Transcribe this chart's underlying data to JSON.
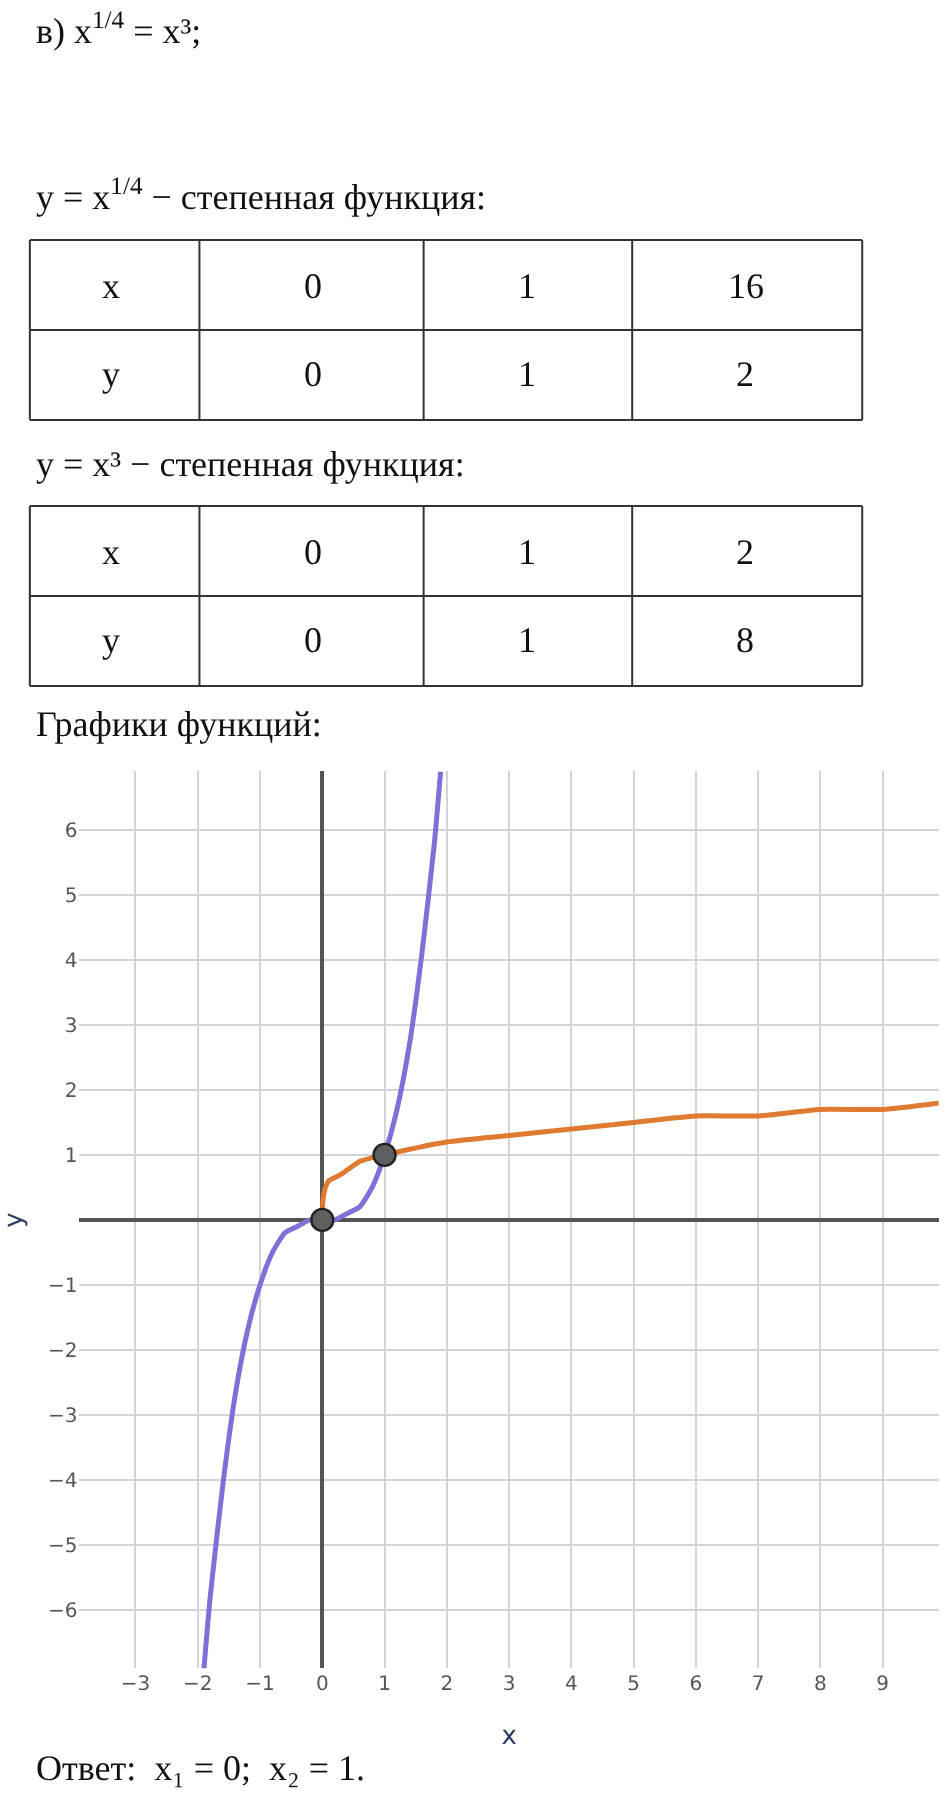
{
  "chart_data": {
    "type": "line",
    "xlabel": "x",
    "ylabel": "y",
    "annotations": [
      "в) x$^{1/4}$ = x³;",
      "y = x$^{1/4}$ − степенная функция:",
      "x",
      "0",
      "1",
      "16",
      "y",
      "0",
      "1",
      "2",
      "y = x³ − степенная функция:",
      "x",
      "0",
      "1",
      "2",
      "y",
      "0",
      "1",
      "8",
      "Графики функций:",
      "Ответ:  x₁ = 0;  x₂ = 1."
    ],
    "series": [
      {
        "color": "#7f6fd6",
        "x": [
          -1.9,
          -1.8,
          -1.6,
          -1.4,
          -1.2,
          -1,
          -0.8,
          -0.6,
          -0.4,
          -0.2,
          0,
          0.2,
          0.4,
          0.6,
          0.8,
          1,
          1.2,
          1.4,
          1.6,
          1.8,
          1.9
        ],
        "values": [
          -6.9,
          -5.8,
          -4.1,
          -2.7,
          -1.7,
          -1,
          -0.5,
          -0.2,
          -0.1,
          0,
          0,
          0,
          0.1,
          0.2,
          0.5,
          1,
          1.7,
          2.7,
          4.1,
          5.8,
          6.9
        ]
      },
      {
        "color": "#e07a30",
        "x": [
          0,
          0.01,
          0.05,
          0.1,
          0.3,
          0.6,
          1,
          2,
          3,
          4,
          5,
          6,
          7,
          8,
          9,
          9.9
        ],
        "values": [
          0,
          0.3,
          0.5,
          0.6,
          0.7,
          0.9,
          1,
          1.2,
          1.3,
          1.4,
          1.5,
          1.6,
          1.6,
          1.7,
          1.7,
          1.8
        ]
      },
      {
        "type": "scatter",
        "color": "#5f5f5f",
        "marker": "circle",
        "x": [
          0,
          1
        ],
        "values": [
          0,
          1
        ]
      }
    ],
    "xlim": [
      -3.9,
      9.9
    ],
    "ylim": [
      -6.9,
      6.9
    ],
    "xticks": [
      -3,
      -2,
      -1,
      0,
      1,
      2,
      3,
      4,
      5,
      6,
      7,
      8,
      9
    ],
    "yticks": [
      -6,
      -5,
      -4,
      -3,
      -2,
      -1,
      1,
      2,
      3,
      4,
      5,
      6
    ],
    "grid": true
  }
}
